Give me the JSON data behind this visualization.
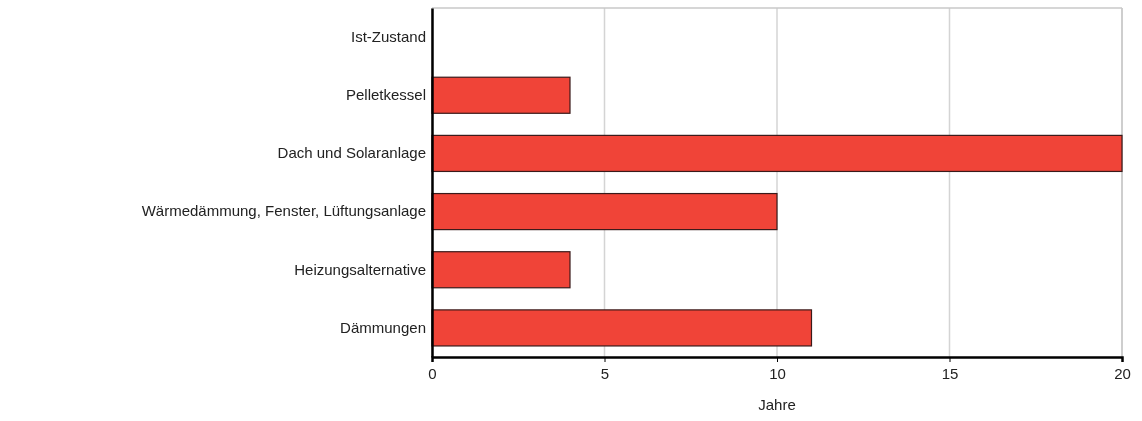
{
  "chart_data": {
    "type": "bar",
    "orientation": "horizontal",
    "xlabel": "Jahre",
    "categories": [
      "Ist-Zustand",
      "Pelletkessel",
      "Dach und Solaranlage",
      "Wärmedämmung, Fenster, Lüftungsanlage",
      "Heizungsalternative",
      "Dämmungen"
    ],
    "values": [
      0,
      4,
      20,
      10,
      4,
      11
    ],
    "color": "#f04438",
    "xlim": [
      0,
      20
    ],
    "xticks": [
      0,
      5,
      10,
      15,
      20
    ],
    "grid": "x"
  }
}
